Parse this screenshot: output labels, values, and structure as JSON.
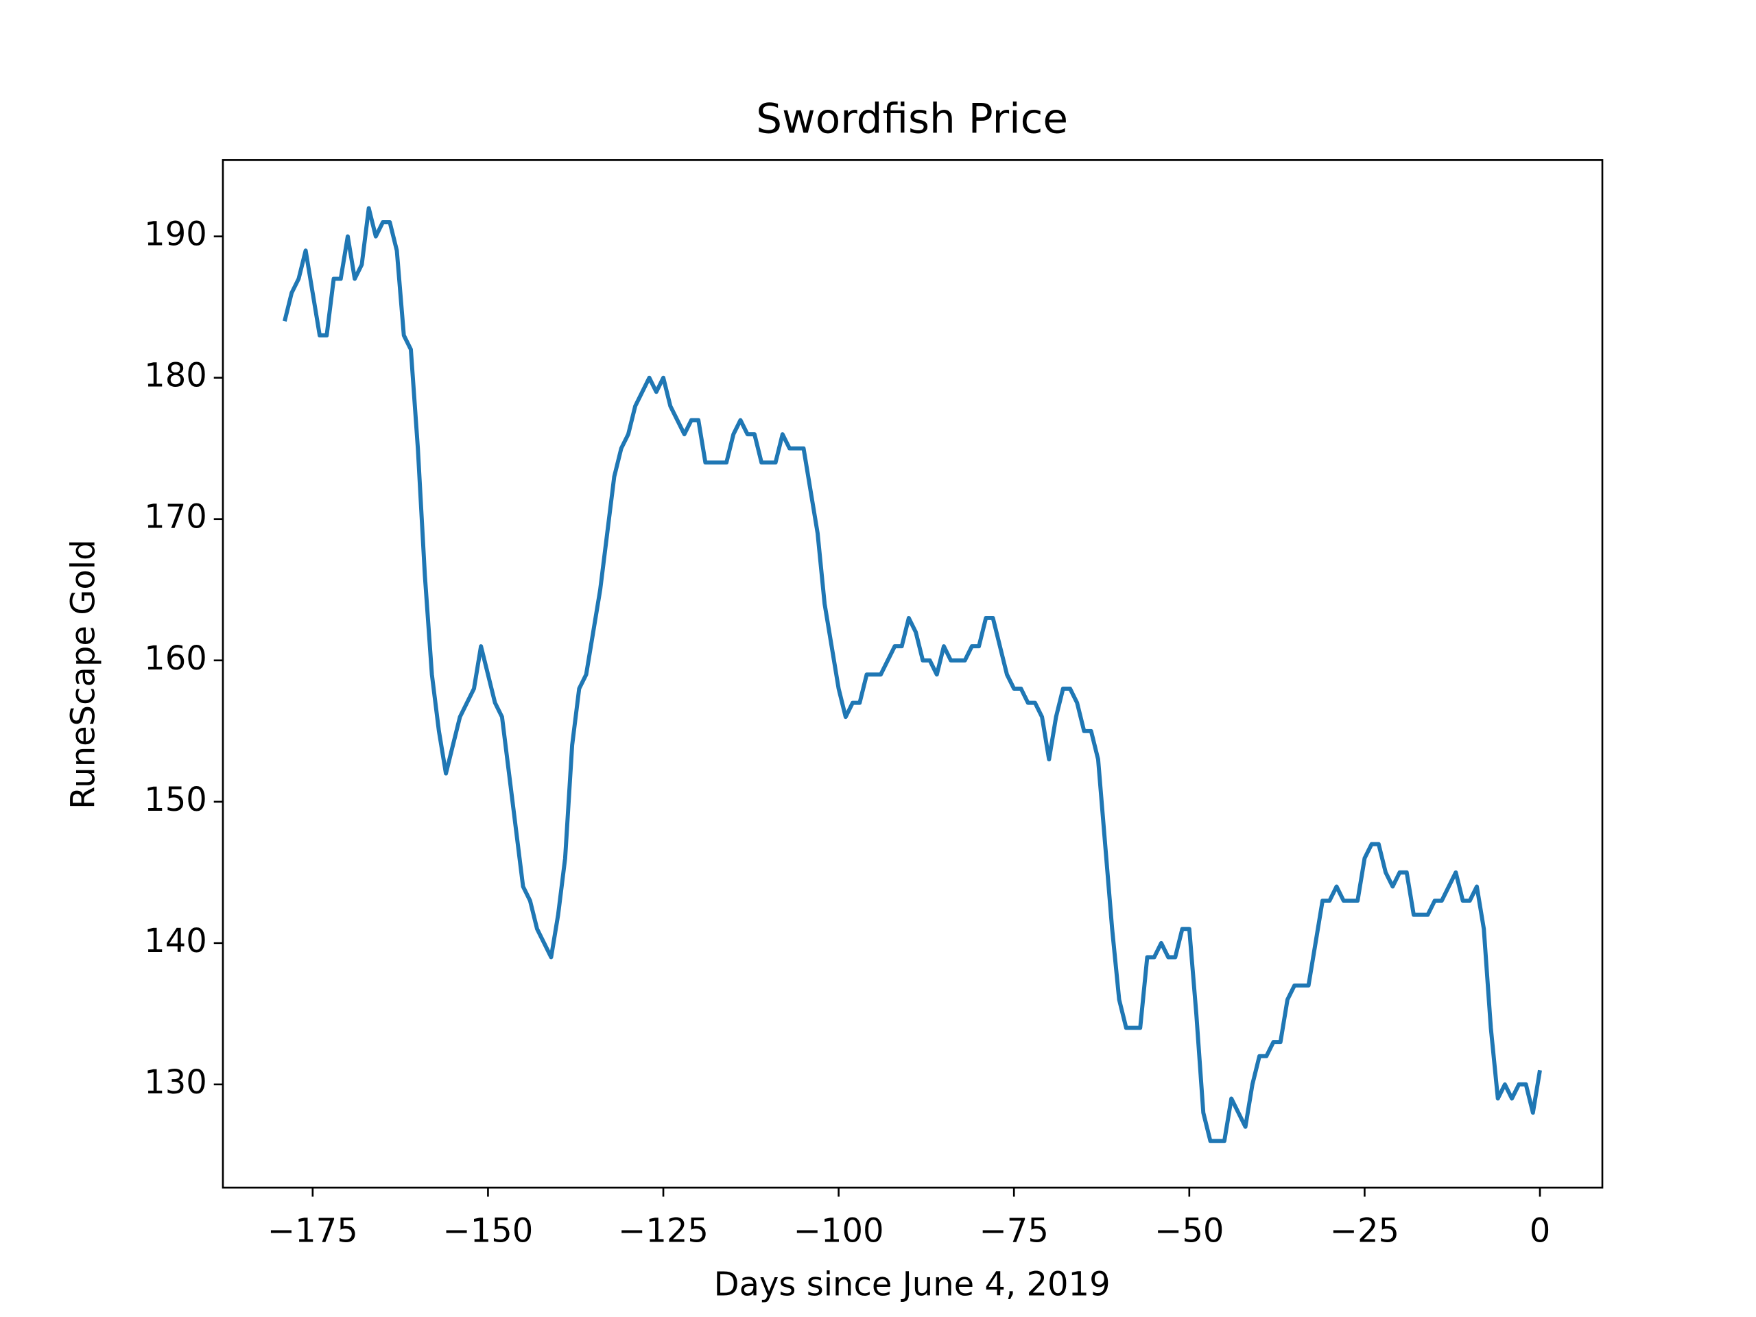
{
  "chart_data": {
    "type": "line",
    "title": "Swordfish Price",
    "xlabel": "Days since June 4, 2019",
    "ylabel": "RuneScape Gold",
    "x": [
      -179,
      -178,
      -177,
      -176,
      -175,
      -174,
      -173,
      -172,
      -171,
      -170,
      -169,
      -168,
      -167,
      -166,
      -165,
      -164,
      -163,
      -162,
      -161,
      -160,
      -159,
      -158,
      -157,
      -156,
      -155,
      -154,
      -153,
      -152,
      -151,
      -150,
      -149,
      -148,
      -147,
      -146,
      -145,
      -144,
      -143,
      -142,
      -141,
      -140,
      -139,
      -138,
      -137,
      -136,
      -135,
      -134,
      -133,
      -132,
      -131,
      -130,
      -129,
      -128,
      -127,
      -126,
      -125,
      -124,
      -123,
      -122,
      -121,
      -120,
      -119,
      -118,
      -117,
      -116,
      -115,
      -114,
      -113,
      -112,
      -111,
      -110,
      -109,
      -108,
      -107,
      -106,
      -105,
      -104,
      -103,
      -102,
      -101,
      -100,
      -99,
      -98,
      -97,
      -96,
      -95,
      -94,
      -93,
      -92,
      -91,
      -90,
      -89,
      -88,
      -87,
      -86,
      -85,
      -84,
      -83,
      -82,
      -81,
      -80,
      -79,
      -78,
      -77,
      -76,
      -75,
      -74,
      -73,
      -72,
      -71,
      -70,
      -69,
      -68,
      -67,
      -66,
      -65,
      -64,
      -63,
      -62,
      -61,
      -60,
      -59,
      -58,
      -57,
      -56,
      -55,
      -54,
      -53,
      -52,
      -51,
      -50,
      -49,
      -48,
      -47,
      -46,
      -45,
      -44,
      -43,
      -42,
      -41,
      -40,
      -39,
      -38,
      -37,
      -36,
      -35,
      -34,
      -33,
      -32,
      -31,
      -30,
      -29,
      -28,
      -27,
      -26,
      -25,
      -24,
      -23,
      -22,
      -21,
      -20,
      -19,
      -18,
      -17,
      -16,
      -15,
      -14,
      -13,
      -12,
      -11,
      -10,
      -9,
      -8,
      -7,
      -6,
      -5,
      -4,
      -3,
      -2,
      -1,
      0
    ],
    "series": [
      {
        "color": "#1f77b4",
        "values": [
          184,
          186,
          187,
          189,
          186,
          183,
          183,
          187,
          187,
          190,
          187,
          188,
          192,
          190,
          191,
          191,
          189,
          183,
          182,
          175,
          166,
          159,
          155,
          152,
          154,
          156,
          157,
          158,
          161,
          159,
          157,
          156,
          152,
          148,
          144,
          143,
          141,
          140,
          139,
          142,
          146,
          154,
          158,
          159,
          162,
          165,
          169,
          173,
          175,
          176,
          178,
          179,
          180,
          179,
          180,
          178,
          177,
          176,
          177,
          177,
          174,
          174,
          174,
          174,
          176,
          177,
          176,
          176,
          174,
          174,
          174,
          176,
          175,
          175,
          175,
          172,
          169,
          164,
          161,
          158,
          156,
          157,
          157,
          159,
          159,
          159,
          160,
          161,
          161,
          163,
          162,
          160,
          160,
          159,
          161,
          160,
          160,
          160,
          161,
          161,
          163,
          163,
          161,
          159,
          158,
          158,
          157,
          157,
          156,
          153,
          156,
          158,
          158,
          157,
          155,
          155,
          153,
          147,
          141,
          136,
          134,
          134,
          134,
          139,
          139,
          140,
          139,
          139,
          141,
          141,
          135,
          128,
          126,
          126,
          126,
          129,
          128,
          127,
          130,
          132,
          132,
          133,
          133,
          136,
          137,
          137,
          137,
          140,
          143,
          143,
          144,
          143,
          143,
          143,
          146,
          147,
          147,
          145,
          144,
          145,
          145,
          142,
          142,
          142,
          143,
          143,
          144,
          145,
          143,
          143,
          144,
          141,
          134,
          129,
          130,
          129,
          130,
          130,
          128,
          131
        ]
      }
    ],
    "xlim": [
      -187.8,
      8.9
    ],
    "xticks": [
      {
        "value": -175,
        "label": "−175"
      },
      {
        "value": -150,
        "label": "−150"
      },
      {
        "value": -125,
        "label": "−125"
      },
      {
        "value": -100,
        "label": "−100"
      },
      {
        "value": -75,
        "label": "−75"
      },
      {
        "value": -50,
        "label": "−50"
      },
      {
        "value": -25,
        "label": "−25"
      },
      0
    ],
    "ylim": [
      122.7,
      195.4
    ],
    "yticks": [
      130,
      140,
      150,
      160,
      170,
      180,
      190
    ]
  }
}
